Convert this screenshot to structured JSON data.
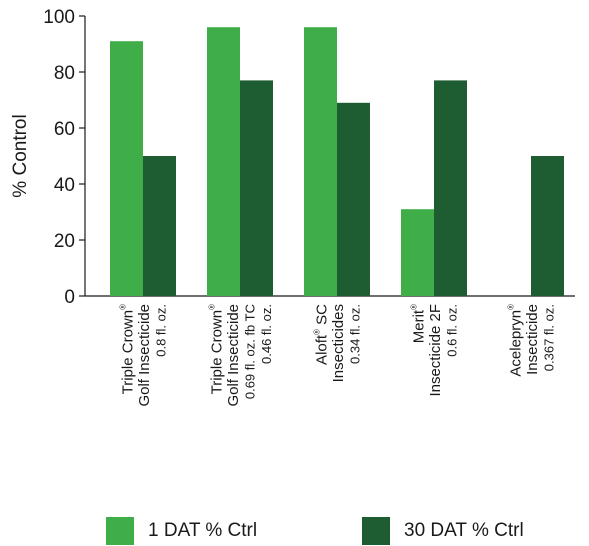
{
  "chart_data": {
    "type": "bar",
    "title": "",
    "xlabel": "",
    "ylabel": "% Control",
    "ylim": [
      0,
      100
    ],
    "yticks": [
      0,
      20,
      40,
      60,
      80,
      100
    ],
    "grid": false,
    "legend_position": "bottom",
    "categories": [
      {
        "lines": [
          {
            "text": "Triple Crown",
            "sup": "®"
          },
          {
            "text": "Golf Insecticide"
          },
          {
            "text": "0.8 fl. oz.",
            "small": true
          }
        ]
      },
      {
        "lines": [
          {
            "text": "Triple Crown",
            "sup": "®"
          },
          {
            "text": "Golf Insecticide"
          },
          {
            "text": "0.69 fl. oz. fb TC",
            "small": true
          },
          {
            "text": "0.46 fl. oz.",
            "small": true
          }
        ]
      },
      {
        "lines": [
          {
            "text": "Aloft",
            "sup": "®",
            "after": " SC"
          },
          {
            "text": "Insecticides"
          },
          {
            "text": "0.34 fl. oz.",
            "small": true
          }
        ]
      },
      {
        "lines": [
          {
            "text": "Merit",
            "sup": "®"
          },
          {
            "text": "Insecticide 2F"
          },
          {
            "text": "0.6 fl. oz.",
            "small": true
          }
        ]
      },
      {
        "lines": [
          {
            "text": "Acelepryn",
            "sup": "®"
          },
          {
            "text": "Insecticide"
          },
          {
            "text": "0.367 fl. oz.",
            "small": true
          }
        ]
      }
    ],
    "series": [
      {
        "name": "1 DAT % Ctrl",
        "color": "#3fae49",
        "values": [
          91,
          96,
          96,
          31,
          0
        ]
      },
      {
        "name": "30 DAT % Ctrl",
        "color": "#1e5c31",
        "values": [
          50,
          77,
          69,
          77,
          50
        ]
      }
    ]
  }
}
